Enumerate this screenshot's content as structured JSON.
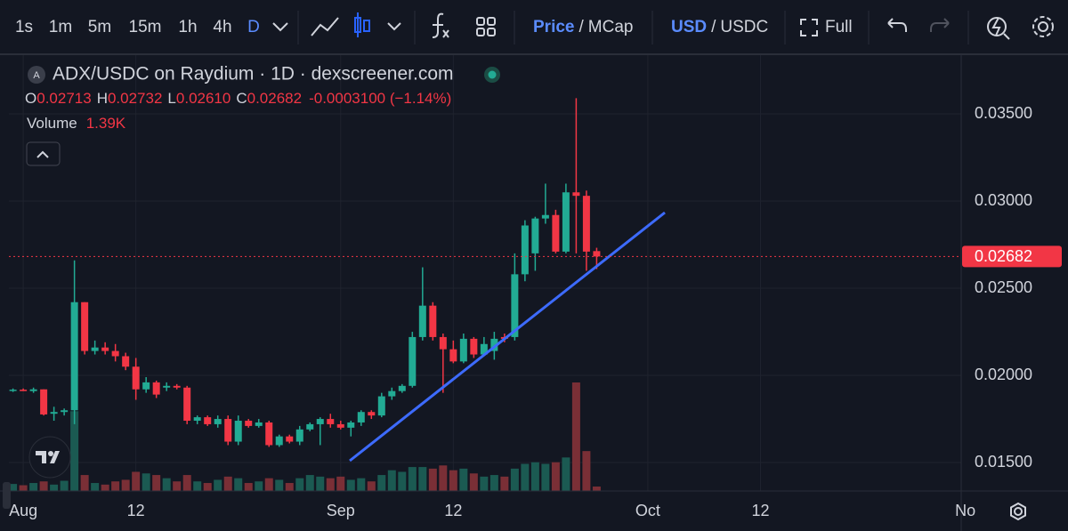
{
  "toolbar": {
    "intervals": [
      "1s",
      "1m",
      "5m",
      "15m",
      "1h",
      "4h",
      "D"
    ],
    "price": "Price",
    "separator": "/",
    "mcap": "MCap",
    "usd": "USD",
    "usdc": "USDC",
    "full": "Full"
  },
  "chart_data": {
    "type": "candlestick",
    "symbol_icon": "A",
    "title": "ADX/USDC on Raydium · 1D · dexscreener.com",
    "legend": {
      "o": "O",
      "open": "0.02713",
      "h": "H",
      "high": "0.02732",
      "l": "L",
      "low": "0.02610",
      "c": "C",
      "close": "0.02682",
      "change": "-0.0003100 (−1.14%)",
      "volume_title": "Volume",
      "volume": "1.39K"
    },
    "x": [
      -1,
      0,
      1,
      2,
      3,
      4,
      5,
      6,
      7,
      8,
      9,
      10,
      11,
      12,
      13,
      14,
      15,
      16,
      17,
      18,
      19,
      20,
      21,
      22,
      23,
      24,
      25,
      26,
      27,
      28,
      29,
      30,
      31,
      32,
      33,
      34,
      35,
      36,
      37,
      38,
      39,
      40,
      41,
      42,
      43,
      44,
      45,
      46,
      47,
      48,
      49,
      50,
      51,
      52,
      53,
      54,
      55,
      56
    ],
    "open": [
      0.01915,
      0.01918,
      0.0191,
      0.0192,
      0.0178,
      0.0179,
      0.018,
      0.0242,
      0.0214,
      0.0216,
      0.0214,
      0.0211,
      0.0205,
      0.0192,
      0.0196,
      0.0193,
      0.0194,
      0.0193,
      0.0174,
      0.0176,
      0.0172,
      0.0175,
      0.0162,
      0.0174,
      0.0171,
      0.0173,
      0.016,
      0.0165,
      0.0162,
      0.0169,
      0.0172,
      0.0175,
      0.0172,
      0.017,
      0.0173,
      0.0179,
      0.0177,
      0.0188,
      0.0191,
      0.0194,
      0.0222,
      0.024,
      0.0222,
      0.0215,
      0.0208,
      0.0221,
      0.0212,
      0.0214,
      0.0222,
      0.0222,
      0.0258,
      0.027,
      0.029,
      0.0292,
      0.0271,
      0.0305,
      0.0303,
      0.02713
    ],
    "high": [
      0.01925,
      0.01925,
      0.0193,
      0.0192,
      0.0182,
      0.0181,
      0.0266,
      0.0242,
      0.022,
      0.0219,
      0.0218,
      0.0213,
      0.021,
      0.0199,
      0.0197,
      0.0196,
      0.0195,
      0.0194,
      0.0177,
      0.0177,
      0.0177,
      0.0177,
      0.0177,
      0.0175,
      0.0175,
      0.0174,
      0.0166,
      0.0166,
      0.0171,
      0.0173,
      0.0176,
      0.0178,
      0.0174,
      0.0174,
      0.018,
      0.018,
      0.019,
      0.0193,
      0.0195,
      0.0225,
      0.0262,
      0.0242,
      0.0224,
      0.022,
      0.0224,
      0.0222,
      0.0222,
      0.0225,
      0.0224,
      0.027,
      0.0289,
      0.0291,
      0.031,
      0.0295,
      0.031,
      0.0359,
      0.0306,
      0.02732
    ],
    "low": [
      0.01905,
      0.0191,
      0.019,
      0.0177,
      0.0174,
      0.0177,
      0.0172,
      0.0212,
      0.0212,
      0.0212,
      0.0208,
      0.0203,
      0.0186,
      0.019,
      0.0187,
      0.0191,
      0.0192,
      0.0172,
      0.0172,
      0.0171,
      0.017,
      0.016,
      0.016,
      0.017,
      0.017,
      0.0159,
      0.0159,
      0.0161,
      0.016,
      0.0168,
      0.016,
      0.017,
      0.0169,
      0.0165,
      0.0171,
      0.0175,
      0.0176,
      0.0186,
      0.019,
      0.0193,
      0.022,
      0.022,
      0.019,
      0.0207,
      0.0207,
      0.021,
      0.0211,
      0.0209,
      0.0219,
      0.022,
      0.0254,
      0.026,
      0.0287,
      0.027,
      0.027,
      0.027,
      0.026,
      0.0261
    ],
    "close": [
      0.01918,
      0.0191,
      0.0192,
      0.01776,
      0.0179,
      0.018,
      0.0242,
      0.0214,
      0.0216,
      0.0214,
      0.0211,
      0.0205,
      0.0192,
      0.0196,
      0.0189,
      0.0194,
      0.0193,
      0.0174,
      0.0176,
      0.0172,
      0.0175,
      0.0162,
      0.0174,
      0.0171,
      0.0173,
      0.016,
      0.0165,
      0.0162,
      0.0169,
      0.0172,
      0.0175,
      0.0172,
      0.017,
      0.0173,
      0.0179,
      0.0177,
      0.0188,
      0.0191,
      0.0194,
      0.0222,
      0.024,
      0.0222,
      0.0215,
      0.0208,
      0.0221,
      0.0212,
      0.0218,
      0.0221,
      0.0221,
      0.0258,
      0.0286,
      0.029,
      0.0292,
      0.0271,
      0.0305,
      0.0303,
      0.0271,
      0.02682
    ],
    "volume": [
      2200,
      1800,
      2500,
      3000,
      2000,
      3200,
      25000,
      5000,
      2500,
      2000,
      3000,
      3500,
      6000,
      5500,
      5000,
      4000,
      3000,
      5000,
      3000,
      2500,
      3500,
      4500,
      4000,
      2500,
      3000,
      4000,
      3500,
      2500,
      4000,
      5000,
      4500,
      4000,
      4500,
      3500,
      4000,
      3000,
      5000,
      6500,
      6000,
      7500,
      7500,
      7000,
      8000,
      6500,
      7000,
      5500,
      4500,
      5000,
      4500,
      7000,
      8500,
      9000,
      8500,
      9000,
      10500,
      34000,
      12500,
      1390
    ],
    "up_color": "#22ab94",
    "down_color": "#f23645",
    "up_volume_color": "#1b5a52",
    "down_volume_color": "#7a2f36",
    "xlim": [
      -1.4,
      91.6
    ],
    "xticks": [
      {
        "value": 0,
        "label": "Aug"
      },
      {
        "value": 11,
        "label": "12"
      },
      {
        "value": 31,
        "label": "Sep"
      },
      {
        "value": 42,
        "label": "12"
      },
      {
        "value": 61,
        "label": "Oct"
      },
      {
        "value": 72,
        "label": "12"
      },
      {
        "value": 92,
        "label": "No"
      }
    ],
    "ylim": [
      0.01337,
      0.03837
    ],
    "yticks": [
      {
        "value": 0.015,
        "label": "0.01500"
      },
      {
        "value": 0.02,
        "label": "0.02000"
      },
      {
        "value": 0.025,
        "label": "0.02500"
      },
      {
        "value": 0.03,
        "label": "0.03000"
      },
      {
        "value": 0.035,
        "label": "0.03500"
      }
    ],
    "last_price": {
      "value": 0.02682,
      "label": "0.02682"
    },
    "grid": true
  }
}
